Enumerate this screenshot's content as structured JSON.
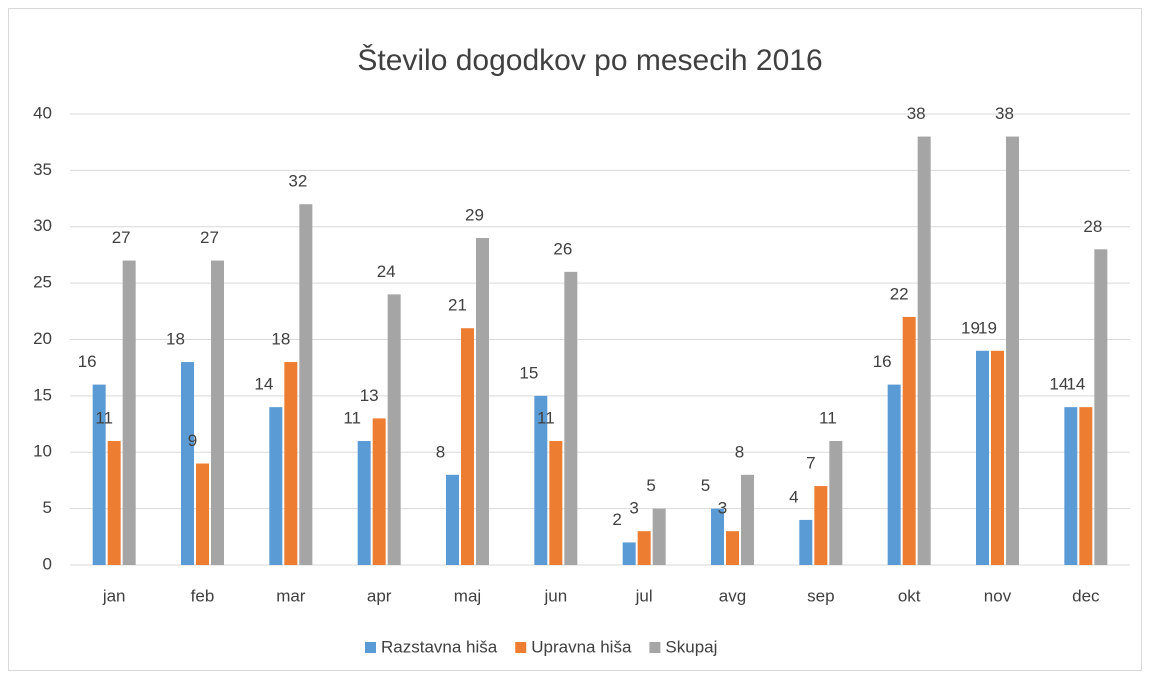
{
  "chart_data": {
    "type": "bar",
    "title": "Število dogodkov po mesecih 2016",
    "categories": [
      "jan",
      "feb",
      "mar",
      "apr",
      "maj",
      "jun",
      "jul",
      "avg",
      "sep",
      "okt",
      "nov",
      "dec"
    ],
    "series": [
      {
        "name": "Razstavna hiša",
        "color": "#5b9bd5",
        "values": [
          16,
          18,
          14,
          11,
          8,
          15,
          2,
          5,
          4,
          16,
          19,
          14
        ]
      },
      {
        "name": "Upravna hiša",
        "color": "#ed7d31",
        "values": [
          11,
          9,
          18,
          13,
          21,
          11,
          3,
          3,
          7,
          22,
          19,
          14
        ]
      },
      {
        "name": "Skupaj",
        "color": "#a5a5a5",
        "values": [
          27,
          27,
          32,
          24,
          29,
          26,
          5,
          8,
          11,
          38,
          38,
          28
        ]
      }
    ],
    "ylim": [
      0,
      40
    ],
    "yticks": [
      0,
      5,
      10,
      15,
      20,
      25,
      30,
      35,
      40
    ],
    "grid": true,
    "legend": "bottom"
  }
}
